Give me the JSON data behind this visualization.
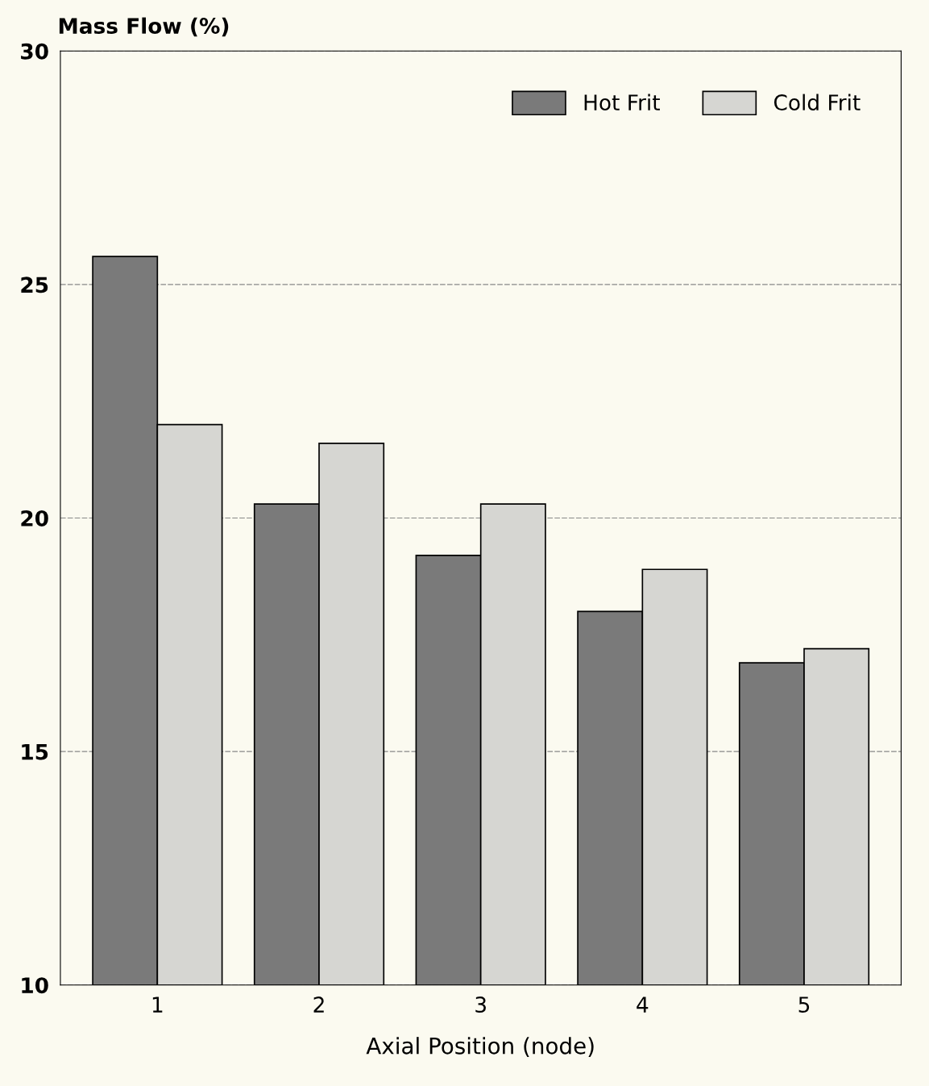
{
  "chart_data": {
    "type": "bar",
    "ylabel": "Mass Flow (%)",
    "xlabel": "Axial Position (node)",
    "categories": [
      "1",
      "2",
      "3",
      "4",
      "5"
    ],
    "series": [
      {
        "name": "Hot Frit",
        "color": "#7a7a7a",
        "values": [
          25.6,
          20.3,
          19.2,
          18.0,
          16.9
        ]
      },
      {
        "name": "Cold Frit",
        "color": "#d6d6d2",
        "values": [
          22.0,
          21.6,
          20.3,
          18.9,
          17.2
        ]
      }
    ],
    "ylim": [
      10,
      30
    ],
    "yticks": [
      10,
      15,
      20,
      25,
      30
    ],
    "grid": "y",
    "legend": "top right"
  }
}
